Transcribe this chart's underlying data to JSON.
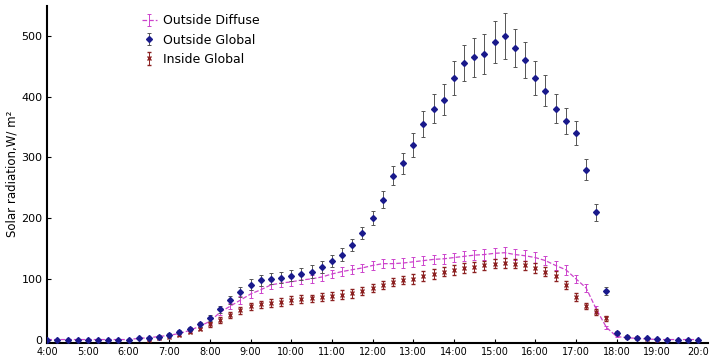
{
  "title": "",
  "ylabel": "Solar radiation,W/ m²",
  "xlabel": "",
  "xlim": [
    4.0,
    20.25
  ],
  "ylim": [
    -5,
    550
  ],
  "yticks": [
    0,
    100,
    200,
    300,
    400,
    500
  ],
  "xtick_labels": [
    "4:00",
    "5:00",
    "6:00",
    "7:00",
    "8:00",
    "9:00",
    "10:00",
    "11:00",
    "12:00",
    "13:00",
    "14:00",
    "15:00",
    "16:00",
    "17:00",
    "18:00",
    "19:00",
    "20:0"
  ],
  "xtick_positions": [
    4.0,
    5.0,
    6.0,
    7.0,
    8.0,
    9.0,
    10.0,
    11.0,
    12.0,
    13.0,
    14.0,
    15.0,
    16.0,
    17.0,
    18.0,
    19.0,
    20.0
  ],
  "outside_global_color": "#1a1a8c",
  "outside_diffuse_color": "#cc44cc",
  "inside_global_color": "#8b2020",
  "legend_labels": [
    "Outside Global",
    "Outside Diffuse",
    "Inside Global"
  ],
  "outside_global_x": [
    4.0,
    4.25,
    4.5,
    4.75,
    5.0,
    5.25,
    5.5,
    5.75,
    6.0,
    6.25,
    6.5,
    6.75,
    7.0,
    7.25,
    7.5,
    7.75,
    8.0,
    8.25,
    8.5,
    8.75,
    9.0,
    9.25,
    9.5,
    9.75,
    10.0,
    10.25,
    10.5,
    10.75,
    11.0,
    11.25,
    11.5,
    11.75,
    12.0,
    12.25,
    12.5,
    12.75,
    13.0,
    13.25,
    13.5,
    13.75,
    14.0,
    14.25,
    14.5,
    14.75,
    15.0,
    15.25,
    15.5,
    15.75,
    16.0,
    16.25,
    16.5,
    16.75,
    17.0,
    17.25,
    17.5,
    17.75,
    18.0,
    18.25,
    18.5,
    18.75,
    19.0,
    19.25,
    19.5,
    19.75,
    20.0
  ],
  "outside_global_y": [
    0,
    0,
    0,
    0,
    0,
    0,
    0,
    0,
    0,
    2,
    3,
    5,
    8,
    12,
    18,
    25,
    35,
    50,
    65,
    78,
    90,
    98,
    100,
    102,
    105,
    108,
    112,
    120,
    130,
    140,
    155,
    175,
    200,
    230,
    270,
    290,
    320,
    355,
    380,
    395,
    430,
    455,
    465,
    470,
    490,
    500,
    480,
    460,
    430,
    410,
    380,
    360,
    340,
    280,
    210,
    80,
    10,
    5,
    3,
    2,
    1,
    0,
    0,
    0,
    0
  ],
  "outside_global_yerr": [
    0,
    0,
    0,
    0,
    0,
    0,
    0,
    0,
    0,
    1,
    1,
    2,
    2,
    3,
    3,
    4,
    5,
    6,
    7,
    8,
    9,
    9,
    9,
    9,
    9,
    10,
    10,
    10,
    10,
    10,
    10,
    10,
    12,
    14,
    16,
    18,
    20,
    22,
    24,
    25,
    28,
    30,
    32,
    33,
    35,
    38,
    32,
    30,
    28,
    26,
    24,
    22,
    20,
    18,
    14,
    6,
    2,
    1,
    1,
    0,
    0,
    0,
    0,
    0,
    0
  ],
  "outside_diffuse_x": [
    4.0,
    4.25,
    4.5,
    4.75,
    5.0,
    5.25,
    5.5,
    5.75,
    6.0,
    6.25,
    6.5,
    6.75,
    7.0,
    7.25,
    7.5,
    7.75,
    8.0,
    8.25,
    8.5,
    8.75,
    9.0,
    9.25,
    9.5,
    9.75,
    10.0,
    10.25,
    10.5,
    10.75,
    11.0,
    11.25,
    11.5,
    11.75,
    12.0,
    12.25,
    12.5,
    12.75,
    13.0,
    13.25,
    13.5,
    13.75,
    14.0,
    14.25,
    14.5,
    14.75,
    15.0,
    15.25,
    15.5,
    15.75,
    16.0,
    16.25,
    16.5,
    16.75,
    17.0,
    17.25,
    17.5,
    17.75,
    18.0,
    18.25,
    18.5,
    18.75,
    19.0,
    19.25,
    19.5,
    19.75,
    20.0
  ],
  "outside_diffuse_y": [
    0,
    0,
    0,
    0,
    0,
    0,
    0,
    0,
    0,
    2,
    3,
    5,
    7,
    10,
    15,
    22,
    30,
    45,
    55,
    65,
    75,
    82,
    90,
    93,
    95,
    98,
    100,
    103,
    108,
    112,
    115,
    118,
    122,
    125,
    125,
    126,
    128,
    130,
    132,
    133,
    135,
    137,
    139,
    140,
    142,
    143,
    140,
    138,
    135,
    130,
    122,
    115,
    100,
    85,
    50,
    20,
    5,
    3,
    2,
    1,
    0,
    0,
    0,
    0,
    0
  ],
  "outside_diffuse_yerr": [
    0,
    0,
    0,
    0,
    0,
    0,
    0,
    0,
    0,
    1,
    1,
    1,
    2,
    2,
    3,
    3,
    4,
    5,
    5,
    6,
    6,
    6,
    7,
    7,
    7,
    7,
    7,
    7,
    7,
    7,
    7,
    7,
    8,
    8,
    8,
    8,
    8,
    8,
    8,
    8,
    8,
    8,
    8,
    9,
    9,
    9,
    9,
    9,
    9,
    8,
    8,
    8,
    7,
    6,
    5,
    3,
    1,
    0,
    0,
    0,
    0,
    0,
    0,
    0,
    0
  ],
  "inside_global_x": [
    6.5,
    6.75,
    7.0,
    7.25,
    7.5,
    7.75,
    8.0,
    8.25,
    8.5,
    8.75,
    9.0,
    9.25,
    9.5,
    9.75,
    10.0,
    10.25,
    10.5,
    10.75,
    11.0,
    11.25,
    11.5,
    11.75,
    12.0,
    12.25,
    12.5,
    12.75,
    13.0,
    13.25,
    13.5,
    13.75,
    14.0,
    14.25,
    14.5,
    14.75,
    15.0,
    15.25,
    15.5,
    15.75,
    16.0,
    16.25,
    16.5,
    16.75,
    17.0,
    17.25,
    17.5,
    17.75,
    18.0,
    18.25,
    18.5,
    18.75,
    19.0
  ],
  "inside_global_y": [
    0,
    2,
    5,
    8,
    12,
    18,
    25,
    32,
    40,
    48,
    55,
    58,
    60,
    62,
    65,
    67,
    68,
    70,
    72,
    74,
    76,
    80,
    85,
    90,
    95,
    98,
    100,
    105,
    108,
    112,
    115,
    118,
    120,
    122,
    125,
    126,
    125,
    122,
    118,
    112,
    105,
    90,
    70,
    55,
    45,
    35,
    10,
    5,
    2,
    1,
    0
  ],
  "inside_global_yerr": [
    0,
    1,
    1,
    2,
    2,
    3,
    4,
    5,
    5,
    6,
    6,
    6,
    6,
    6,
    6,
    6,
    6,
    6,
    7,
    7,
    7,
    7,
    7,
    7,
    7,
    7,
    8,
    8,
    8,
    8,
    8,
    8,
    8,
    8,
    8,
    8,
    8,
    8,
    8,
    8,
    8,
    7,
    6,
    5,
    5,
    4,
    1,
    0,
    0,
    0,
    0
  ]
}
